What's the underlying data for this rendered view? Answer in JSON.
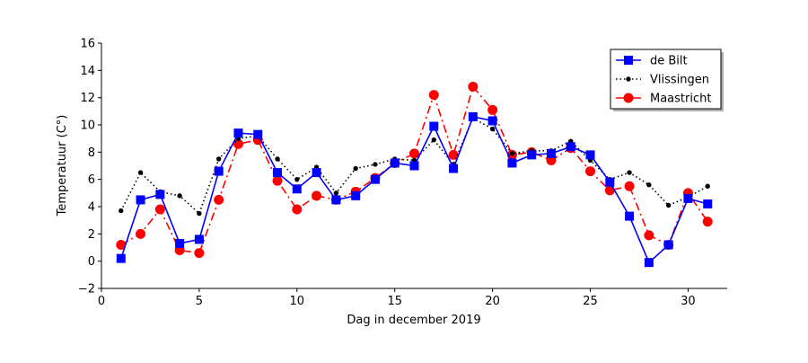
{
  "chart_data": {
    "type": "line",
    "title": "",
    "xlabel": "Dag in december 2019",
    "ylabel": "Temperatuur (C°)",
    "xlim": [
      0,
      32
    ],
    "ylim": [
      -2,
      16
    ],
    "xticks": [
      0,
      5,
      10,
      15,
      20,
      25,
      30
    ],
    "yticks": [
      -2,
      0,
      2,
      4,
      6,
      8,
      10,
      12,
      14,
      16
    ],
    "ytick_labels": [
      "−2",
      "0",
      "2",
      "4",
      "6",
      "8",
      "10",
      "12",
      "14",
      "16"
    ],
    "grid": false,
    "legend_position": "top-right",
    "x": [
      1,
      2,
      3,
      4,
      5,
      6,
      7,
      8,
      9,
      10,
      11,
      12,
      13,
      14,
      15,
      16,
      17,
      18,
      19,
      20,
      21,
      22,
      23,
      24,
      25,
      26,
      27,
      28,
      29,
      30,
      31
    ],
    "series": [
      {
        "name": "de Bilt",
        "color": "#0000ff",
        "line_style": "solid",
        "marker": "square",
        "values": [
          0.2,
          4.5,
          4.9,
          1.3,
          1.6,
          6.6,
          9.4,
          9.3,
          6.5,
          5.3,
          6.5,
          4.5,
          4.8,
          6.0,
          7.2,
          7.0,
          9.9,
          6.8,
          10.6,
          10.3,
          7.2,
          7.8,
          7.9,
          8.4,
          7.8,
          5.8,
          3.3,
          -0.1,
          1.2,
          4.6,
          4.2
        ]
      },
      {
        "name": "Vlissingen",
        "color": "#000000",
        "line_style": "dotted",
        "marker": "dot",
        "values": [
          3.7,
          6.5,
          5.1,
          4.8,
          3.5,
          7.5,
          9.0,
          9.2,
          7.5,
          6.0,
          6.9,
          5.0,
          6.8,
          7.1,
          7.5,
          7.4,
          8.9,
          7.1,
          10.5,
          9.7,
          7.9,
          8.1,
          8.1,
          8.8,
          7.4,
          6.0,
          6.5,
          5.6,
          4.1,
          4.7,
          5.5
        ]
      },
      {
        "name": "Maastricht",
        "color": "#ff0000",
        "line_style": "dashdot",
        "marker": "circle",
        "values": [
          1.2,
          2.0,
          3.8,
          0.8,
          0.6,
          4.5,
          8.6,
          8.9,
          5.9,
          3.8,
          4.8,
          4.5,
          5.1,
          6.1,
          7.2,
          7.9,
          12.2,
          7.8,
          12.8,
          11.1,
          7.8,
          8.0,
          7.4,
          8.3,
          6.6,
          5.2,
          5.5,
          1.9,
          1.2,
          5.0,
          2.9
        ]
      }
    ]
  }
}
